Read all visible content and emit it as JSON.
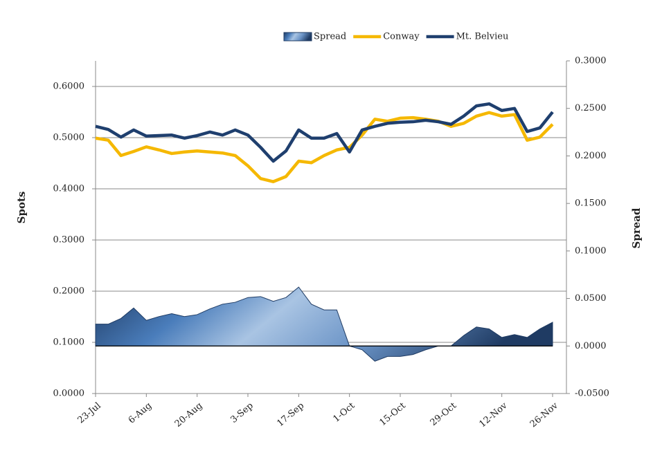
{
  "chart_data": {
    "type": "line",
    "categories": [
      "23-Jul",
      null,
      null,
      null,
      "6-Aug",
      null,
      null,
      null,
      "20-Aug",
      null,
      null,
      null,
      "3-Sep",
      null,
      null,
      null,
      "17-Sep",
      null,
      null,
      null,
      "1-Oct",
      null,
      null,
      null,
      "15-Oct",
      null,
      null,
      null,
      "29-Oct",
      null,
      null,
      null,
      "12-Nov",
      null,
      null,
      null,
      "26-Nov"
    ],
    "y_label": "Spots",
    "y2_label": "Spread",
    "ylim": [
      0,
      0.65
    ],
    "yticks": [
      {
        "value": 0,
        "label": "0.0000"
      },
      {
        "value": 0.1,
        "label": "0.1000"
      },
      {
        "value": 0.2,
        "label": "0.2000"
      },
      {
        "value": 0.3,
        "label": "0.3000"
      },
      {
        "value": 0.4,
        "label": "0.4000"
      },
      {
        "value": 0.5,
        "label": "0.5000"
      },
      {
        "value": 0.6,
        "label": "0.6000"
      }
    ],
    "y2lim": [
      -0.05,
      0.3
    ],
    "y2ticks": [
      {
        "value": -0.05,
        "label": "-0.0500"
      },
      {
        "value": 0,
        "label": "0.0000"
      },
      {
        "value": 0.05,
        "label": "0.0500"
      },
      {
        "value": 0.1,
        "label": "0.1000"
      },
      {
        "value": 0.15,
        "label": "0.1500"
      },
      {
        "value": 0.2,
        "label": "0.2000"
      },
      {
        "value": 0.25,
        "label": "0.2500"
      },
      {
        "value": 0.3,
        "label": "0.3000"
      }
    ],
    "grid": true,
    "legend": "top",
    "series": [
      {
        "name": "Spread",
        "type": "area",
        "axis": "y2",
        "color": "#1f3b63",
        "values": [
          0.023,
          0.023,
          0.029,
          0.04,
          0.027,
          0.031,
          0.034,
          0.031,
          0.033,
          0.039,
          0.044,
          0.046,
          0.051,
          0.052,
          0.047,
          0.051,
          0.062,
          0.044,
          0.038,
          0.038,
          0.0,
          -0.004,
          -0.016,
          -0.011,
          -0.011,
          -0.009,
          -0.004,
          0.0,
          0.0,
          0.011,
          0.02,
          0.018,
          0.009,
          0.012,
          0.009,
          0.018,
          0.025
        ]
      },
      {
        "name": "Conway",
        "type": "line",
        "color": "#f5b800",
        "values": [
          0.499,
          0.495,
          0.465,
          0.473,
          0.482,
          0.476,
          0.469,
          0.472,
          0.474,
          0.472,
          0.47,
          0.465,
          0.445,
          0.42,
          0.414,
          0.424,
          0.454,
          0.451,
          0.465,
          0.476,
          0.481,
          0.505,
          0.536,
          0.532,
          0.538,
          0.539,
          0.536,
          0.532,
          0.522,
          0.528,
          0.542,
          0.549,
          0.542,
          0.545,
          0.495,
          0.501,
          0.526
        ]
      },
      {
        "name": "Mt. Belvieu",
        "type": "line",
        "color": "#1f3f6e",
        "values": [
          0.522,
          0.516,
          0.501,
          0.515,
          0.503,
          0.504,
          0.505,
          0.499,
          0.504,
          0.511,
          0.505,
          0.515,
          0.505,
          0.481,
          0.454,
          0.474,
          0.515,
          0.499,
          0.499,
          0.508,
          0.472,
          0.515,
          0.522,
          0.528,
          0.53,
          0.531,
          0.534,
          0.531,
          0.526,
          0.542,
          0.562,
          0.566,
          0.553,
          0.557,
          0.512,
          0.519,
          0.55
        ]
      }
    ]
  }
}
